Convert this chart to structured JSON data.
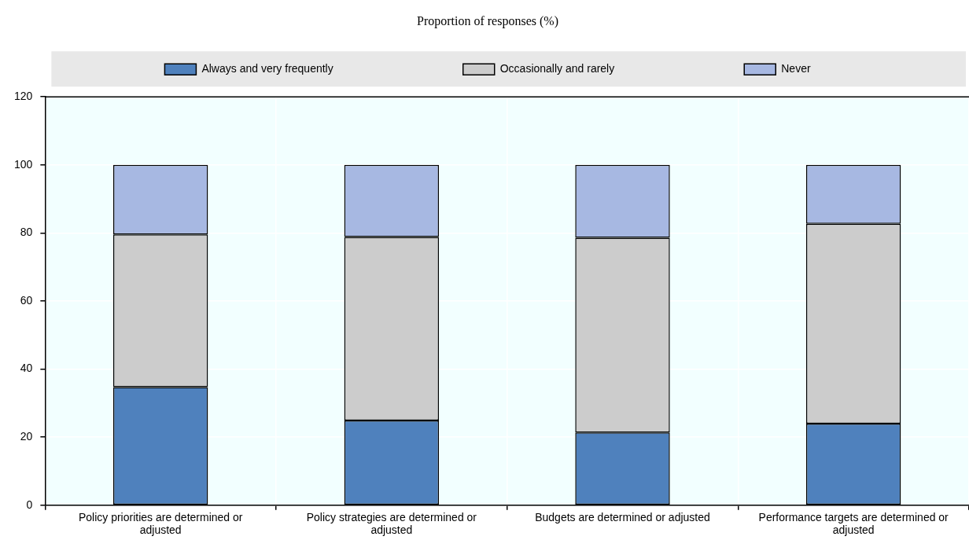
{
  "chart_data": {
    "type": "bar",
    "title": "Proportion of responses (%)",
    "categories": [
      "Policy priorities are determined or adjusted",
      "Policy strategies are determined or adjusted",
      "Budgets are determined or adjusted",
      "Performance targets are determined or adjusted"
    ],
    "series": [
      {
        "name": "Always and very frequently",
        "color": "#4f81bd",
        "values": [
          34.7,
          24.9,
          21.4,
          24.0
        ]
      },
      {
        "name": "Occasionally and rarely",
        "color": "#cccccc",
        "values": [
          44.9,
          53.9,
          57.2,
          58.7
        ]
      },
      {
        "name": "Never",
        "color": "#a7b8e2",
        "values": [
          20.4,
          21.2,
          21.4,
          17.3
        ]
      }
    ],
    "stacked": true,
    "ylim": [
      0,
      120
    ],
    "yticks": [
      0,
      20,
      40,
      60,
      80,
      100,
      120
    ],
    "grid": true,
    "legend": "top"
  }
}
